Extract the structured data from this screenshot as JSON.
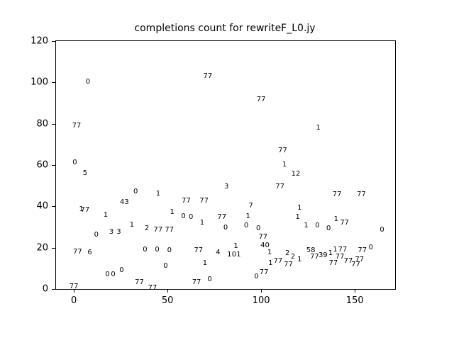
{
  "chart_data": {
    "type": "scatter",
    "title": "completions count for rewriteF_L0.jy",
    "xlabel": "",
    "ylabel": "",
    "marker_style": "text-label",
    "grid": false,
    "legend": "none",
    "xlim": [
      -9.5,
      171.5
    ],
    "ylim": [
      0,
      120
    ],
    "x_ticks": [
      0,
      50,
      100,
      150
    ],
    "y_ticks": [
      0,
      20,
      40,
      60,
      80,
      100,
      120
    ],
    "points": [
      {
        "x": 0,
        "y": 1,
        "label": "77"
      },
      {
        "x": 0.5,
        "y": 61,
        "label": "0"
      },
      {
        "x": 1.5,
        "y": 79,
        "label": "77"
      },
      {
        "x": 2,
        "y": 18,
        "label": "77"
      },
      {
        "x": 4,
        "y": 38.5,
        "label": "1"
      },
      {
        "x": 6,
        "y": 38,
        "label": "77"
      },
      {
        "x": 6,
        "y": 56,
        "label": "5"
      },
      {
        "x": 7.5,
        "y": 100,
        "label": "0"
      },
      {
        "x": 8.5,
        "y": 17.5,
        "label": "6"
      },
      {
        "x": 12,
        "y": 26,
        "label": "0"
      },
      {
        "x": 17,
        "y": 35.5,
        "label": "1"
      },
      {
        "x": 18,
        "y": 7,
        "label": "0"
      },
      {
        "x": 21,
        "y": 7,
        "label": "0"
      },
      {
        "x": 20,
        "y": 27.5,
        "label": "3"
      },
      {
        "x": 24,
        "y": 27.5,
        "label": "3"
      },
      {
        "x": 25.5,
        "y": 9,
        "label": "0"
      },
      {
        "x": 27,
        "y": 42,
        "label": "43"
      },
      {
        "x": 31,
        "y": 31,
        "label": "1"
      },
      {
        "x": 33,
        "y": 47,
        "label": "0"
      },
      {
        "x": 35,
        "y": 3,
        "label": "77"
      },
      {
        "x": 38,
        "y": 19,
        "label": "0"
      },
      {
        "x": 39,
        "y": 29,
        "label": "2"
      },
      {
        "x": 42,
        "y": 0.5,
        "label": "77"
      },
      {
        "x": 44.5,
        "y": 19,
        "label": "0"
      },
      {
        "x": 45,
        "y": 46,
        "label": "1"
      },
      {
        "x": 45,
        "y": 28.5,
        "label": "77"
      },
      {
        "x": 49,
        "y": 11,
        "label": "0"
      },
      {
        "x": 51,
        "y": 28.5,
        "label": "77"
      },
      {
        "x": 51,
        "y": 18.5,
        "label": "0"
      },
      {
        "x": 52.5,
        "y": 37,
        "label": "1"
      },
      {
        "x": 58.5,
        "y": 35,
        "label": "0"
      },
      {
        "x": 60,
        "y": 42.5,
        "label": "77"
      },
      {
        "x": 62.5,
        "y": 34.5,
        "label": "0"
      },
      {
        "x": 65.5,
        "y": 3,
        "label": "77"
      },
      {
        "x": 66.5,
        "y": 18.5,
        "label": "77"
      },
      {
        "x": 68.5,
        "y": 32,
        "label": "1"
      },
      {
        "x": 69.5,
        "y": 42.5,
        "label": "77"
      },
      {
        "x": 70,
        "y": 12.5,
        "label": "1"
      },
      {
        "x": 71.5,
        "y": 103,
        "label": "77"
      },
      {
        "x": 72.5,
        "y": 4.5,
        "label": "0"
      },
      {
        "x": 77,
        "y": 17.5,
        "label": "4"
      },
      {
        "x": 79,
        "y": 34.5,
        "label": "77"
      },
      {
        "x": 81,
        "y": 29.5,
        "label": "0"
      },
      {
        "x": 81.5,
        "y": 49.5,
        "label": "3"
      },
      {
        "x": 83,
        "y": 16.5,
        "label": "1"
      },
      {
        "x": 85.5,
        "y": 16.5,
        "label": "0"
      },
      {
        "x": 86.5,
        "y": 20.5,
        "label": "1"
      },
      {
        "x": 88,
        "y": 16.5,
        "label": "1"
      },
      {
        "x": 92,
        "y": 30.5,
        "label": "0"
      },
      {
        "x": 93,
        "y": 35,
        "label": "1"
      },
      {
        "x": 94.5,
        "y": 40,
        "label": "7"
      },
      {
        "x": 97.5,
        "y": 6,
        "label": "0"
      },
      {
        "x": 98.5,
        "y": 29,
        "label": "0"
      },
      {
        "x": 100,
        "y": 91.5,
        "label": "77"
      },
      {
        "x": 101,
        "y": 25,
        "label": "77"
      },
      {
        "x": 101.5,
        "y": 8,
        "label": "77"
      },
      {
        "x": 102,
        "y": 21,
        "label": "40"
      },
      {
        "x": 104.5,
        "y": 17.5,
        "label": "1"
      },
      {
        "x": 105,
        "y": 12.5,
        "label": "1"
      },
      {
        "x": 109,
        "y": 13.5,
        "label": "77"
      },
      {
        "x": 110,
        "y": 49.5,
        "label": "77"
      },
      {
        "x": 111.5,
        "y": 67,
        "label": "77"
      },
      {
        "x": 112.5,
        "y": 60,
        "label": "1"
      },
      {
        "x": 114,
        "y": 17,
        "label": "2"
      },
      {
        "x": 114.5,
        "y": 11.5,
        "label": "77"
      },
      {
        "x": 117,
        "y": 15.5,
        "label": "2"
      },
      {
        "x": 118.5,
        "y": 55.5,
        "label": "12"
      },
      {
        "x": 119.5,
        "y": 34.5,
        "label": "1"
      },
      {
        "x": 120.5,
        "y": 39,
        "label": "1"
      },
      {
        "x": 120.5,
        "y": 14,
        "label": "1"
      },
      {
        "x": 124,
        "y": 30.5,
        "label": "1"
      },
      {
        "x": 126.5,
        "y": 18.5,
        "label": "58"
      },
      {
        "x": 128.5,
        "y": 15.5,
        "label": "77"
      },
      {
        "x": 130,
        "y": 30.5,
        "label": "0"
      },
      {
        "x": 130.5,
        "y": 78,
        "label": "1"
      },
      {
        "x": 133,
        "y": 16,
        "label": "39"
      },
      {
        "x": 136,
        "y": 29,
        "label": "0"
      },
      {
        "x": 137,
        "y": 17,
        "label": "1"
      },
      {
        "x": 138.5,
        "y": 12.5,
        "label": "77"
      },
      {
        "x": 139.5,
        "y": 19,
        "label": "1"
      },
      {
        "x": 140,
        "y": 33.5,
        "label": "1"
      },
      {
        "x": 140.5,
        "y": 45.5,
        "label": "77"
      },
      {
        "x": 142,
        "y": 15.5,
        "label": "77"
      },
      {
        "x": 143.5,
        "y": 19,
        "label": "77"
      },
      {
        "x": 144.5,
        "y": 32,
        "label": "77"
      },
      {
        "x": 146.5,
        "y": 13.5,
        "label": "77"
      },
      {
        "x": 150.5,
        "y": 11.5,
        "label": "77"
      },
      {
        "x": 152.5,
        "y": 14,
        "label": "77"
      },
      {
        "x": 153.5,
        "y": 45.5,
        "label": "77"
      },
      {
        "x": 154,
        "y": 18.5,
        "label": "77"
      },
      {
        "x": 158.5,
        "y": 20,
        "label": "0"
      },
      {
        "x": 164.5,
        "y": 28.5,
        "label": "0"
      }
    ],
    "colors": {
      "background": "#ffffff",
      "foreground": "#000000"
    }
  }
}
